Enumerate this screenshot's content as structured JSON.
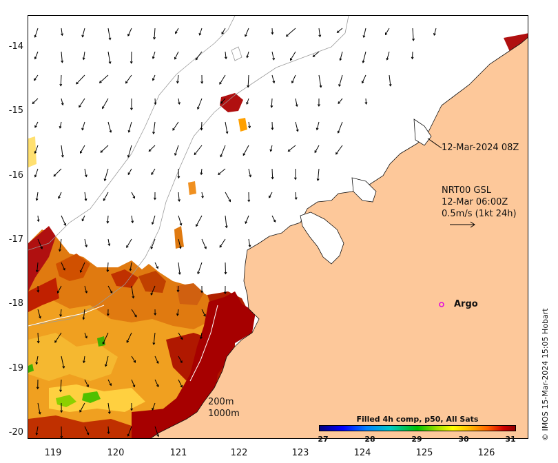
{
  "axes": {
    "y_ticks": [
      "-14",
      "-15",
      "-16",
      "-17",
      "-18",
      "-19",
      "-20"
    ],
    "x_ticks": [
      "119",
      "120",
      "121",
      "122",
      "123",
      "124",
      "125",
      "126"
    ],
    "lon_range": [
      118.6,
      126.6
    ],
    "lat_range": [
      -20.1,
      -13.6
    ]
  },
  "credit": "© IMOS 15-Mar-2024 15:05 Hobart",
  "annotations": {
    "coast_time": "12-Mar-2024 08Z",
    "current_product": "NRT00 GSL",
    "current_time": "12-Mar 06:00Z",
    "vector_scale": "0.5m/s (1kt 24h)",
    "argo_label": "Argo",
    "isobath_200": "200m",
    "isobath_1000": "1000m"
  },
  "colorbar": {
    "title": "Filled 4h comp, p50, All Sats",
    "ticks": [
      "27",
      "28",
      "29",
      "30",
      "31"
    ],
    "range": [
      27,
      31
    ]
  },
  "colors": {
    "land": "#fdc89a",
    "warm_sst": "#a60000",
    "mid_sst": "#e06a00",
    "argo": "#e000e0"
  }
}
